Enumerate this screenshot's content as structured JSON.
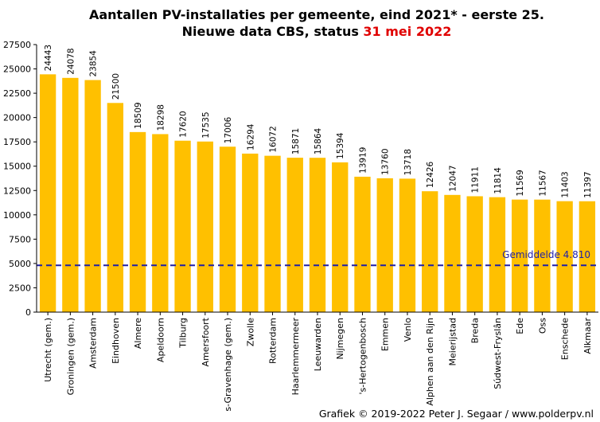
{
  "chart_data": {
    "type": "bar",
    "title_line1": "Aantallen  PV-installaties  per gemeente, eind 2021* - eerste 25.",
    "title_line2_prefix": "Nieuwe data CBS, status ",
    "title_line2_highlight": "31 mei 2022",
    "categories": [
      "Utrecht (gem.)",
      "Groningen (gem.)",
      "Amsterdam",
      "Eindhoven",
      "Almere",
      "Apeldoorn",
      "Tilburg",
      "Amersfoort",
      "s-Gravenhage (gem.)",
      "Zwolle",
      "Rotterdam",
      "Haarlemmermeer",
      "Leeuwarden",
      "Nijmegen",
      "'s-Hertogenbosch",
      "Emmen",
      "Venlo",
      "Alphen aan den Rijn",
      "Meierijstad",
      "Breda",
      "Súdwest-Fryslân",
      "Ede",
      "Oss",
      "Enschede",
      "Alkmaar"
    ],
    "values": [
      24443,
      24078,
      23854,
      21500,
      18509,
      18298,
      17620,
      17535,
      17006,
      16294,
      16072,
      15871,
      15864,
      15394,
      13919,
      13760,
      13718,
      12426,
      12047,
      11911,
      11814,
      11569,
      11567,
      11403,
      11397
    ],
    "value_labels": [
      "24443",
      "24078",
      "23854",
      "21500",
      "18509",
      "18298",
      "17620",
      "17535",
      "17006",
      "16294",
      "16072",
      "15871",
      "15864",
      "15394",
      "13919",
      "13760",
      "13718",
      "12426",
      "12047",
      "11911",
      "11814",
      "11569",
      "11567",
      "11403",
      "11397"
    ],
    "ylim": [
      0,
      27500
    ],
    "yticks": [
      0,
      2500,
      5000,
      7500,
      10000,
      12500,
      15000,
      17500,
      20000,
      22500,
      25000,
      27500
    ],
    "ytick_labels": [
      "0",
      "2500",
      "5000",
      "7500",
      "10000",
      "12500",
      "15000",
      "17500",
      "20000",
      "22500",
      "25000",
      "27500"
    ],
    "average": 4810,
    "average_label": "Gemiddelde  4.810",
    "grid": false,
    "legend": "none",
    "bar_color": "#ffc000",
    "average_line_color": "#1f1fa8",
    "highlight_color": "#e00000"
  },
  "credit": "Grafiek  © 2019-2022  Peter J. Segaar / www.polderpv.nl"
}
